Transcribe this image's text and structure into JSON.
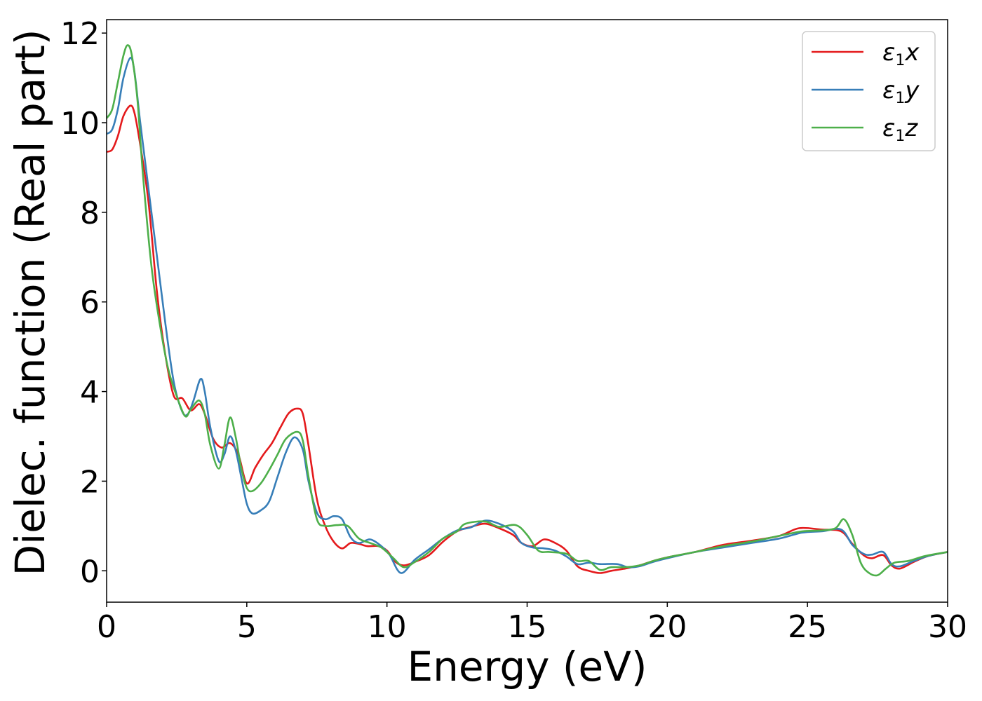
{
  "chart_data": {
    "type": "line",
    "xlabel": "Energy (eV)",
    "ylabel": "Dielec. function (Real part)",
    "xlim": [
      0,
      30
    ],
    "ylim": [
      -0.7,
      12.3
    ],
    "xticks": [
      0,
      5,
      10,
      15,
      20,
      25,
      30
    ],
    "yticks": [
      0,
      2,
      4,
      6,
      8,
      10,
      12
    ],
    "grid": false,
    "legend_position": "top-right",
    "series": [
      {
        "name": "ε1x",
        "legend_symbol": "ε",
        "legend_sub": "1",
        "legend_var": "x",
        "color": "#e41a1c",
        "points": [
          [
            0,
            9.35
          ],
          [
            0.2,
            9.4
          ],
          [
            0.4,
            9.7
          ],
          [
            0.6,
            10.15
          ],
          [
            0.85,
            10.38
          ],
          [
            1.0,
            10.2
          ],
          [
            1.2,
            9.5
          ],
          [
            1.5,
            8.2
          ],
          [
            1.8,
            6.2
          ],
          [
            2.1,
            4.8
          ],
          [
            2.4,
            3.9
          ],
          [
            2.7,
            3.85
          ],
          [
            3.0,
            3.58
          ],
          [
            3.3,
            3.72
          ],
          [
            3.5,
            3.5
          ],
          [
            3.8,
            2.95
          ],
          [
            4.1,
            2.75
          ],
          [
            4.4,
            2.85
          ],
          [
            4.7,
            2.6
          ],
          [
            5.0,
            1.95
          ],
          [
            5.3,
            2.3
          ],
          [
            5.6,
            2.6
          ],
          [
            5.9,
            2.85
          ],
          [
            6.2,
            3.2
          ],
          [
            6.5,
            3.52
          ],
          [
            6.8,
            3.62
          ],
          [
            7.0,
            3.5
          ],
          [
            7.2,
            2.8
          ],
          [
            7.5,
            1.6
          ],
          [
            7.8,
            1.0
          ],
          [
            8.1,
            0.65
          ],
          [
            8.4,
            0.5
          ],
          [
            8.7,
            0.62
          ],
          [
            9.0,
            0.6
          ],
          [
            9.3,
            0.55
          ],
          [
            9.7,
            0.55
          ],
          [
            10.0,
            0.45
          ],
          [
            10.3,
            0.2
          ],
          [
            10.6,
            0.12
          ],
          [
            11.0,
            0.2
          ],
          [
            11.5,
            0.35
          ],
          [
            12.0,
            0.65
          ],
          [
            12.5,
            0.88
          ],
          [
            13.0,
            0.98
          ],
          [
            13.5,
            1.05
          ],
          [
            14.0,
            0.95
          ],
          [
            14.5,
            0.8
          ],
          [
            14.8,
            0.62
          ],
          [
            15.2,
            0.55
          ],
          [
            15.6,
            0.7
          ],
          [
            16.0,
            0.62
          ],
          [
            16.4,
            0.45
          ],
          [
            16.8,
            0.1
          ],
          [
            17.2,
            0.0
          ],
          [
            17.6,
            -0.05
          ],
          [
            18.0,
            0.0
          ],
          [
            18.5,
            0.05
          ],
          [
            19.0,
            0.12
          ],
          [
            19.5,
            0.22
          ],
          [
            20.0,
            0.3
          ],
          [
            21.0,
            0.42
          ],
          [
            22.0,
            0.58
          ],
          [
            23.0,
            0.67
          ],
          [
            24.0,
            0.78
          ],
          [
            24.7,
            0.95
          ],
          [
            25.5,
            0.92
          ],
          [
            26.2,
            0.88
          ],
          [
            26.6,
            0.6
          ],
          [
            27.0,
            0.35
          ],
          [
            27.3,
            0.28
          ],
          [
            27.7,
            0.35
          ],
          [
            28.0,
            0.12
          ],
          [
            28.3,
            0.05
          ],
          [
            28.8,
            0.2
          ],
          [
            29.3,
            0.33
          ],
          [
            30.0,
            0.42
          ]
        ]
      },
      {
        "name": "ε1y",
        "legend_symbol": "ε",
        "legend_sub": "1",
        "legend_var": "y",
        "color": "#377eb8",
        "points": [
          [
            0,
            9.75
          ],
          [
            0.2,
            9.85
          ],
          [
            0.4,
            10.3
          ],
          [
            0.6,
            11.0
          ],
          [
            0.85,
            11.45
          ],
          [
            1.0,
            11.1
          ],
          [
            1.2,
            10.0
          ],
          [
            1.5,
            8.5
          ],
          [
            1.8,
            7.0
          ],
          [
            2.1,
            5.5
          ],
          [
            2.4,
            4.2
          ],
          [
            2.7,
            3.55
          ],
          [
            2.9,
            3.5
          ],
          [
            3.1,
            3.8
          ],
          [
            3.35,
            4.28
          ],
          [
            3.5,
            4.0
          ],
          [
            3.7,
            3.2
          ],
          [
            4.0,
            2.45
          ],
          [
            4.2,
            2.6
          ],
          [
            4.4,
            3.0
          ],
          [
            4.6,
            2.7
          ],
          [
            4.8,
            2.1
          ],
          [
            5.0,
            1.5
          ],
          [
            5.2,
            1.28
          ],
          [
            5.5,
            1.35
          ],
          [
            5.8,
            1.55
          ],
          [
            6.1,
            2.1
          ],
          [
            6.4,
            2.65
          ],
          [
            6.7,
            2.98
          ],
          [
            7.0,
            2.7
          ],
          [
            7.2,
            2.0
          ],
          [
            7.5,
            1.3
          ],
          [
            7.8,
            1.15
          ],
          [
            8.1,
            1.22
          ],
          [
            8.4,
            1.15
          ],
          [
            8.7,
            0.75
          ],
          [
            9.0,
            0.62
          ],
          [
            9.4,
            0.7
          ],
          [
            9.8,
            0.55
          ],
          [
            10.1,
            0.35
          ],
          [
            10.5,
            -0.05
          ],
          [
            11.0,
            0.25
          ],
          [
            11.5,
            0.48
          ],
          [
            12.0,
            0.72
          ],
          [
            12.5,
            0.9
          ],
          [
            13.0,
            0.97
          ],
          [
            13.5,
            1.12
          ],
          [
            14.0,
            1.05
          ],
          [
            14.5,
            0.88
          ],
          [
            14.8,
            0.62
          ],
          [
            15.2,
            0.52
          ],
          [
            15.6,
            0.5
          ],
          [
            16.0,
            0.45
          ],
          [
            16.4,
            0.32
          ],
          [
            16.8,
            0.15
          ],
          [
            17.2,
            0.18
          ],
          [
            17.6,
            0.15
          ],
          [
            18.2,
            0.15
          ],
          [
            18.6,
            0.08
          ],
          [
            19.0,
            0.1
          ],
          [
            19.5,
            0.2
          ],
          [
            20.0,
            0.28
          ],
          [
            21.0,
            0.42
          ],
          [
            22.0,
            0.52
          ],
          [
            23.0,
            0.62
          ],
          [
            24.0,
            0.72
          ],
          [
            24.8,
            0.85
          ],
          [
            25.5,
            0.88
          ],
          [
            26.2,
            0.92
          ],
          [
            26.6,
            0.58
          ],
          [
            27.0,
            0.38
          ],
          [
            27.3,
            0.36
          ],
          [
            27.7,
            0.42
          ],
          [
            28.0,
            0.15
          ],
          [
            28.3,
            0.1
          ],
          [
            28.8,
            0.22
          ],
          [
            29.3,
            0.33
          ],
          [
            30.0,
            0.42
          ]
        ]
      },
      {
        "name": "ε1z",
        "legend_symbol": "ε",
        "legend_sub": "1",
        "legend_var": "z",
        "color": "#4daf4a",
        "points": [
          [
            0,
            10.1
          ],
          [
            0.2,
            10.3
          ],
          [
            0.4,
            10.9
          ],
          [
            0.6,
            11.5
          ],
          [
            0.75,
            11.73
          ],
          [
            0.9,
            11.5
          ],
          [
            1.1,
            10.5
          ],
          [
            1.3,
            8.8
          ],
          [
            1.6,
            6.8
          ],
          [
            1.9,
            5.5
          ],
          [
            2.2,
            4.5
          ],
          [
            2.5,
            3.9
          ],
          [
            2.8,
            3.45
          ],
          [
            3.0,
            3.6
          ],
          [
            3.3,
            3.8
          ],
          [
            3.5,
            3.5
          ],
          [
            3.7,
            2.8
          ],
          [
            4.0,
            2.28
          ],
          [
            4.2,
            2.8
          ],
          [
            4.4,
            3.42
          ],
          [
            4.6,
            3.0
          ],
          [
            4.8,
            2.3
          ],
          [
            5.0,
            1.85
          ],
          [
            5.2,
            1.78
          ],
          [
            5.5,
            1.95
          ],
          [
            5.8,
            2.25
          ],
          [
            6.1,
            2.6
          ],
          [
            6.4,
            2.95
          ],
          [
            6.8,
            3.1
          ],
          [
            7.0,
            2.9
          ],
          [
            7.2,
            2.1
          ],
          [
            7.5,
            1.15
          ],
          [
            7.8,
            1.0
          ],
          [
            8.2,
            1.02
          ],
          [
            8.6,
            1.0
          ],
          [
            9.0,
            0.72
          ],
          [
            9.4,
            0.62
          ],
          [
            9.8,
            0.52
          ],
          [
            10.2,
            0.3
          ],
          [
            10.6,
            0.08
          ],
          [
            11.0,
            0.2
          ],
          [
            11.5,
            0.42
          ],
          [
            12.0,
            0.72
          ],
          [
            12.5,
            0.88
          ],
          [
            12.8,
            1.05
          ],
          [
            13.5,
            1.1
          ],
          [
            14.0,
            0.98
          ],
          [
            14.6,
            1.02
          ],
          [
            15.0,
            0.8
          ],
          [
            15.4,
            0.45
          ],
          [
            15.8,
            0.42
          ],
          [
            16.4,
            0.38
          ],
          [
            16.8,
            0.22
          ],
          [
            17.2,
            0.22
          ],
          [
            17.6,
            0.02
          ],
          [
            18.0,
            0.08
          ],
          [
            18.5,
            0.08
          ],
          [
            19.0,
            0.12
          ],
          [
            19.5,
            0.22
          ],
          [
            20.0,
            0.3
          ],
          [
            21.0,
            0.42
          ],
          [
            22.0,
            0.55
          ],
          [
            23.0,
            0.65
          ],
          [
            24.0,
            0.78
          ],
          [
            24.8,
            0.88
          ],
          [
            25.5,
            0.9
          ],
          [
            26.0,
            0.95
          ],
          [
            26.3,
            1.15
          ],
          [
            26.6,
            0.8
          ],
          [
            26.9,
            0.18
          ],
          [
            27.2,
            -0.05
          ],
          [
            27.5,
            -0.1
          ],
          [
            27.8,
            0.05
          ],
          [
            28.1,
            0.18
          ],
          [
            28.6,
            0.22
          ],
          [
            29.2,
            0.33
          ],
          [
            30.0,
            0.42
          ]
        ]
      }
    ]
  }
}
